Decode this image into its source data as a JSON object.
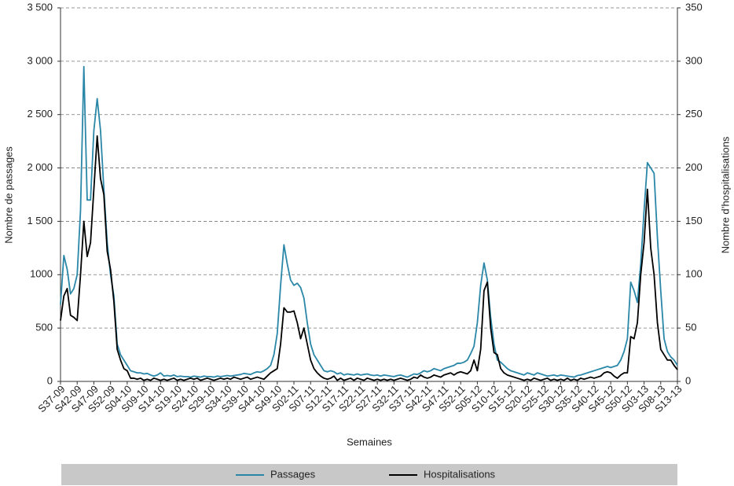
{
  "chart_data": {
    "type": "line",
    "x_label": "Semaines",
    "y_label": "Nombre de passages",
    "y2_label": "Nombre d’hospitalisations",
    "categories": [
      "S37-09",
      null,
      null,
      null,
      null,
      "S42-09",
      null,
      null,
      null,
      null,
      "S47-09",
      null,
      null,
      null,
      null,
      "S52-09",
      null,
      null,
      null,
      null,
      "S04-10",
      null,
      null,
      null,
      null,
      "S09-10",
      null,
      null,
      null,
      null,
      "S14-10",
      null,
      null,
      null,
      null,
      "S19-10",
      null,
      null,
      null,
      null,
      "S24-10",
      null,
      null,
      null,
      null,
      "S29-10",
      null,
      null,
      null,
      null,
      "S34-10",
      null,
      null,
      null,
      null,
      "S39-10",
      null,
      null,
      null,
      null,
      "S44-10",
      null,
      null,
      null,
      null,
      "S49-10",
      null,
      null,
      null,
      null,
      "S02-11",
      null,
      null,
      null,
      null,
      "S07-11",
      null,
      null,
      null,
      null,
      "S12-11",
      null,
      null,
      null,
      null,
      "S17-11",
      null,
      null,
      null,
      null,
      "S22-11",
      null,
      null,
      null,
      null,
      "S27-11",
      null,
      null,
      null,
      null,
      "S32-11",
      null,
      null,
      null,
      null,
      "S37-11",
      null,
      null,
      null,
      null,
      "S42-11",
      null,
      null,
      null,
      null,
      "S47-11",
      null,
      null,
      null,
      null,
      "S52-11",
      null,
      null,
      null,
      null,
      "S05-12",
      null,
      null,
      null,
      null,
      "S10-12",
      null,
      null,
      null,
      null,
      "S15-12",
      null,
      null,
      null,
      null,
      "S20-12",
      null,
      null,
      null,
      null,
      "S25-12",
      null,
      null,
      null,
      null,
      "S30-12",
      null,
      null,
      null,
      null,
      "S35-12",
      null,
      null,
      null,
      null,
      "S40-12",
      null,
      null,
      null,
      null,
      "S45-12",
      null,
      null,
      null,
      null,
      "S50-12",
      null,
      null,
      null,
      null,
      "S03-13",
      null,
      null,
      null,
      null,
      "S08-13",
      null,
      null,
      null,
      null,
      "S13-13"
    ],
    "series": [
      {
        "name": "Passages",
        "color": "#2a87a8",
        "axis": "y",
        "values": [
          720,
          1180,
          1050,
          820,
          870,
          1000,
          1600,
          2950,
          1700,
          1700,
          2350,
          2650,
          2350,
          1800,
          1300,
          1000,
          800,
          350,
          250,
          200,
          150,
          100,
          90,
          80,
          80,
          70,
          75,
          60,
          50,
          60,
          80,
          50,
          55,
          50,
          60,
          45,
          50,
          45,
          45,
          40,
          50,
          45,
          40,
          50,
          45,
          45,
          40,
          50,
          45,
          50,
          55,
          50,
          55,
          60,
          65,
          75,
          70,
          65,
          80,
          90,
          85,
          100,
          120,
          150,
          250,
          450,
          900,
          1280,
          1100,
          950,
          900,
          920,
          880,
          780,
          550,
          350,
          250,
          200,
          150,
          100,
          90,
          100,
          90,
          70,
          80,
          60,
          70,
          65,
          60,
          70,
          60,
          65,
          70,
          60,
          55,
          60,
          50,
          60,
          55,
          50,
          45,
          55,
          60,
          50,
          40,
          55,
          70,
          65,
          80,
          100,
          90,
          100,
          120,
          110,
          100,
          120,
          130,
          140,
          150,
          170,
          170,
          180,
          200,
          260,
          330,
          550,
          900,
          1110,
          950,
          600,
          350,
          200,
          180,
          150,
          120,
          100,
          90,
          80,
          70,
          60,
          80,
          70,
          60,
          80,
          70,
          60,
          50,
          55,
          60,
          50,
          60,
          55,
          50,
          45,
          40,
          55,
          60,
          70,
          80,
          90,
          100,
          110,
          120,
          130,
          140,
          130,
          140,
          150,
          200,
          280,
          400,
          930,
          850,
          740,
          1100,
          1600,
          2050,
          2000,
          1950,
          1350,
          850,
          400,
          280,
          230,
          200,
          150
        ]
      },
      {
        "name": "Hospitalisations",
        "color": "#000000",
        "axis": "y2",
        "values": [
          57,
          80,
          87,
          62,
          60,
          57,
          100,
          150,
          117,
          130,
          180,
          230,
          190,
          175,
          122,
          105,
          75,
          30,
          20,
          12,
          10,
          3,
          3,
          2,
          3,
          1,
          2,
          1,
          3,
          2,
          1,
          2,
          1,
          2,
          3,
          1,
          2,
          1,
          2,
          3,
          2,
          3,
          1,
          2,
          3,
          2,
          1,
          2,
          3,
          2,
          3,
          2,
          4,
          3,
          2,
          3,
          4,
          2,
          3,
          4,
          3,
          2,
          5,
          8,
          10,
          12,
          35,
          69,
          65,
          65,
          66,
          55,
          40,
          50,
          35,
          20,
          12,
          8,
          5,
          3,
          2,
          3,
          5,
          1,
          3,
          1,
          2,
          3,
          1,
          3,
          2,
          1,
          3,
          2,
          1,
          2,
          1,
          2,
          1,
          2,
          1,
          2,
          3,
          2,
          1,
          2,
          4,
          3,
          6,
          4,
          3,
          4,
          6,
          5,
          4,
          6,
          7,
          8,
          6,
          8,
          9,
          8,
          7,
          10,
          20,
          10,
          30,
          85,
          93,
          50,
          27,
          25,
          12,
          8,
          6,
          5,
          4,
          3,
          2,
          1,
          2,
          1,
          3,
          2,
          1,
          2,
          3,
          1,
          2,
          1,
          2,
          1,
          3,
          1,
          2,
          1,
          3,
          2,
          3,
          4,
          3,
          4,
          5,
          8,
          9,
          8,
          5,
          3,
          6,
          8,
          8,
          42,
          40,
          55,
          100,
          130,
          180,
          125,
          100,
          55,
          30,
          25,
          20,
          20,
          15,
          11
        ]
      }
    ],
    "ylim": [
      0,
      3500
    ],
    "yticks": [
      0,
      500,
      {
        "value": 1000,
        "label": "1000"
      },
      {
        "value": 1500,
        "label": "1 500"
      },
      {
        "value": 2000,
        "label": "2 000"
      },
      {
        "value": 2500,
        "label": "2 500"
      },
      {
        "value": 3000,
        "label": "3 000"
      },
      {
        "value": 3500,
        "label": "3 500"
      }
    ],
    "y2lim": [
      0,
      350
    ],
    "y2ticks": [
      0,
      50,
      100,
      150,
      200,
      250,
      300,
      350
    ],
    "grid": true,
    "legend": "bottom"
  }
}
